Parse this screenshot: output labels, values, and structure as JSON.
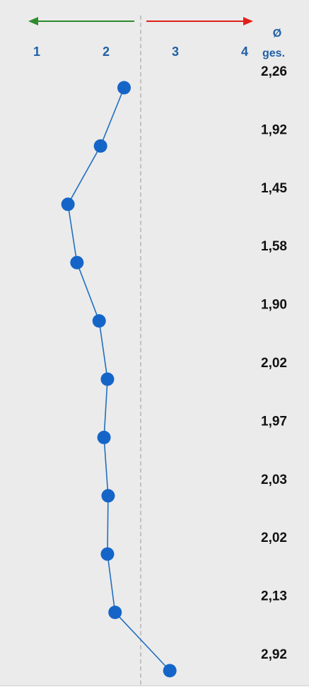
{
  "chart_data": {
    "type": "line",
    "orientation": "vertical-profile",
    "x_ticks": [
      "1",
      "2",
      "3",
      "4"
    ],
    "xlim": [
      1,
      4
    ],
    "reference_line": 2.5,
    "values": [
      2.26,
      1.92,
      1.45,
      1.58,
      1.9,
      2.02,
      1.97,
      2.03,
      2.02,
      2.13,
      2.92
    ],
    "value_labels": [
      "2,26",
      "1,92",
      "1,45",
      "1,58",
      "1,90",
      "2,02",
      "1,97",
      "2,03",
      "2,02",
      "2,13",
      "2,92"
    ],
    "column_header": [
      "Ø",
      "ges."
    ],
    "left_arrow_color": "#2e8b2e",
    "right_arrow_color": "#e0201a",
    "series_color": "#1565c8",
    "line_color": "#1f6fc0",
    "grid": false
  }
}
